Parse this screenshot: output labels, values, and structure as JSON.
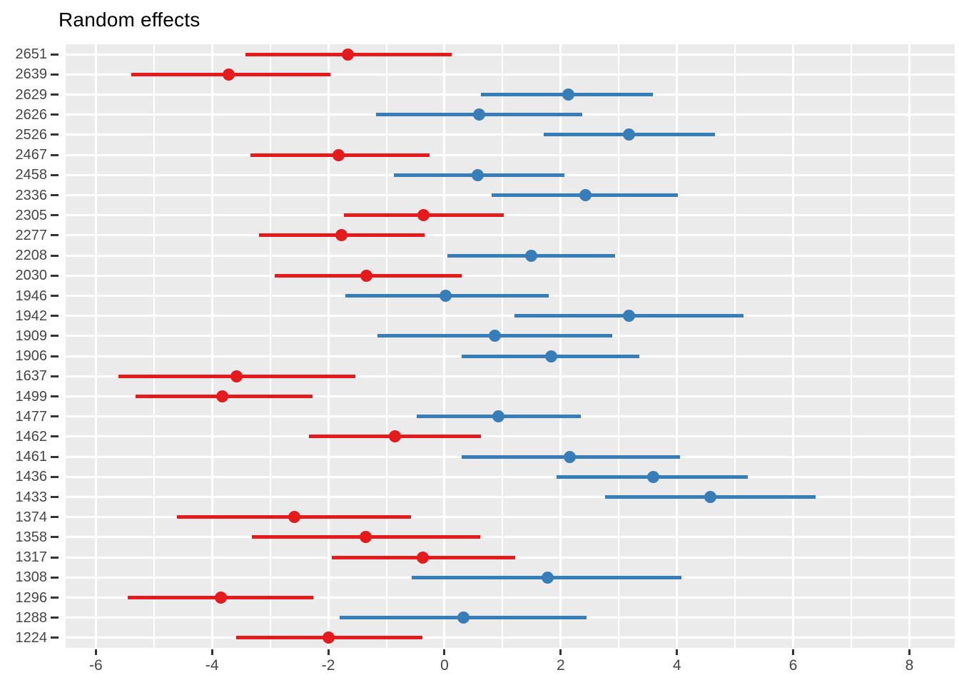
{
  "title": "Random effects",
  "colors": {
    "positive": "#377EB8",
    "negative": "#E41A1C",
    "panel_background": "#EBEBEB",
    "gridline": "#FFFFFF",
    "axis_text": "#454545",
    "tick_mark": "#333333",
    "title_text": "#000000"
  },
  "chart_data": {
    "type": "pointrange",
    "orientation": "horizontal",
    "title": "Random effects",
    "xlabel": "",
    "ylabel": "",
    "xlim": [
      -6.52,
      8.78
    ],
    "x_major_ticks": [
      -6,
      -4,
      -2,
      0,
      2,
      4,
      6,
      8
    ],
    "x_minor_gridlines": [
      -5,
      -3,
      -1,
      1,
      3,
      5,
      7
    ],
    "grid": "on",
    "legend": "none",
    "point_color_rule": "blue if estimate >= 0, red if estimate < 0",
    "groups": [
      {
        "id": "2651",
        "estimate": -1.66,
        "ci_low": -3.43,
        "ci_high": 0.12,
        "sign": "negative"
      },
      {
        "id": "2639",
        "estimate": -3.71,
        "ci_low": -5.39,
        "ci_high": -1.97,
        "sign": "negative"
      },
      {
        "id": "2629",
        "estimate": 2.13,
        "ci_low": 0.63,
        "ci_high": 3.59,
        "sign": "positive"
      },
      {
        "id": "2626",
        "estimate": 0.59,
        "ci_low": -1.18,
        "ci_high": 2.37,
        "sign": "positive"
      },
      {
        "id": "2526",
        "estimate": 3.17,
        "ci_low": 1.71,
        "ci_high": 4.66,
        "sign": "positive"
      },
      {
        "id": "2467",
        "estimate": -1.82,
        "ci_low": -3.34,
        "ci_high": -0.26,
        "sign": "negative"
      },
      {
        "id": "2458",
        "estimate": 0.57,
        "ci_low": -0.87,
        "ci_high": 2.06,
        "sign": "positive"
      },
      {
        "id": "2336",
        "estimate": 2.42,
        "ci_low": 0.81,
        "ci_high": 4.01,
        "sign": "positive"
      },
      {
        "id": "2305",
        "estimate": -0.36,
        "ci_low": -1.73,
        "ci_high": 1.02,
        "sign": "negative"
      },
      {
        "id": "2277",
        "estimate": -1.78,
        "ci_low": -3.19,
        "ci_high": -0.34,
        "sign": "negative"
      },
      {
        "id": "2208",
        "estimate": 1.49,
        "ci_low": 0.05,
        "ci_high": 2.94,
        "sign": "positive"
      },
      {
        "id": "2030",
        "estimate": -1.34,
        "ci_low": -2.92,
        "ci_high": 0.3,
        "sign": "negative"
      },
      {
        "id": "1946",
        "estimate": 0.02,
        "ci_low": -1.71,
        "ci_high": 1.79,
        "sign": "positive"
      },
      {
        "id": "1942",
        "estimate": 3.17,
        "ci_low": 1.2,
        "ci_high": 5.15,
        "sign": "positive"
      },
      {
        "id": "1909",
        "estimate": 0.86,
        "ci_low": -1.16,
        "ci_high": 2.88,
        "sign": "positive"
      },
      {
        "id": "1906",
        "estimate": 1.83,
        "ci_low": 0.3,
        "ci_high": 3.35,
        "sign": "positive"
      },
      {
        "id": "1637",
        "estimate": -3.58,
        "ci_low": -5.61,
        "ci_high": -1.53,
        "sign": "negative"
      },
      {
        "id": "1499",
        "estimate": -3.82,
        "ci_low": -5.32,
        "ci_high": -2.27,
        "sign": "negative"
      },
      {
        "id": "1477",
        "estimate": 0.93,
        "ci_low": -0.48,
        "ci_high": 2.35,
        "sign": "positive"
      },
      {
        "id": "1462",
        "estimate": -0.85,
        "ci_low": -2.33,
        "ci_high": 0.63,
        "sign": "negative"
      },
      {
        "id": "1461",
        "estimate": 2.16,
        "ci_low": 0.3,
        "ci_high": 4.05,
        "sign": "positive"
      },
      {
        "id": "1436",
        "estimate": 3.59,
        "ci_low": 1.93,
        "ci_high": 5.22,
        "sign": "positive"
      },
      {
        "id": "1433",
        "estimate": 4.58,
        "ci_low": 2.76,
        "ci_high": 6.39,
        "sign": "positive"
      },
      {
        "id": "1374",
        "estimate": -2.59,
        "ci_low": -4.6,
        "ci_high": -0.58,
        "sign": "negative"
      },
      {
        "id": "1358",
        "estimate": -1.36,
        "ci_low": -3.31,
        "ci_high": 0.61,
        "sign": "negative"
      },
      {
        "id": "1317",
        "estimate": -0.38,
        "ci_low": -1.94,
        "ci_high": 1.22,
        "sign": "negative"
      },
      {
        "id": "1308",
        "estimate": 1.77,
        "ci_low": -0.56,
        "ci_high": 4.08,
        "sign": "positive"
      },
      {
        "id": "1296",
        "estimate": -3.85,
        "ci_low": -5.45,
        "ci_high": -2.26,
        "sign": "negative"
      },
      {
        "id": "1288",
        "estimate": 0.32,
        "ci_low": -1.8,
        "ci_high": 2.45,
        "sign": "positive"
      },
      {
        "id": "1224",
        "estimate": -2.0,
        "ci_low": -3.58,
        "ci_high": -0.38,
        "sign": "negative"
      }
    ]
  }
}
